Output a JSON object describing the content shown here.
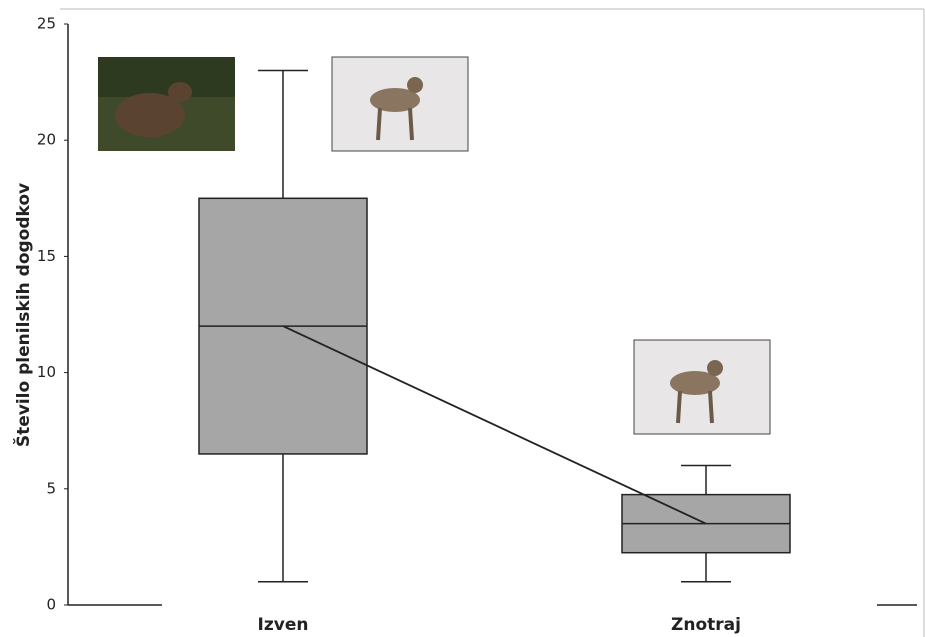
{
  "chart_data": {
    "type": "box",
    "y_label": "Število plenilskih dogodkov",
    "categories": [
      "Izven",
      "Znotraj"
    ],
    "boxes": [
      {
        "min": 1,
        "q1": 6.5,
        "median": 12,
        "q3": 17.5,
        "max": 23
      },
      {
        "min": 1,
        "q1": 2.25,
        "median": 3.5,
        "q3": 4.75,
        "max": 6
      }
    ],
    "color": "#a6a6a6",
    "median_line": true,
    "ylim": [
      0,
      25
    ],
    "yticks": [
      0,
      5,
      10,
      15,
      20,
      25
    ]
  }
}
